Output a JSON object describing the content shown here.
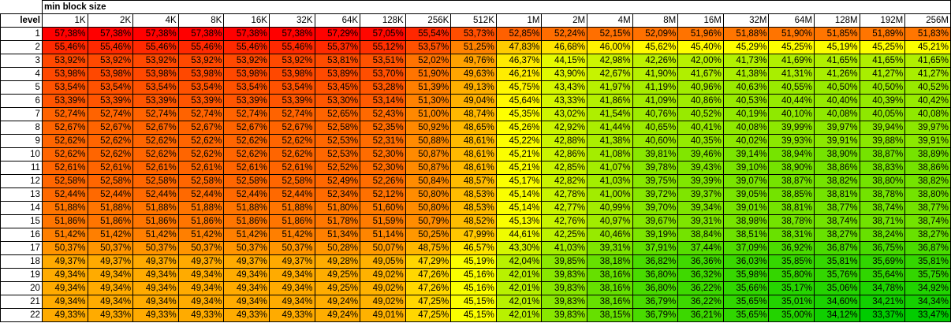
{
  "sheet": {
    "header_title": "min block size",
    "row_header_label": "level",
    "block_sizes": [
      "1K",
      "2K",
      "4K",
      "8K",
      "16K",
      "32K",
      "64K",
      "128K",
      "256K",
      "512K",
      "1M",
      "2M",
      "4M",
      "8M",
      "16M",
      "32M",
      "64M",
      "128M",
      "192M",
      "256M"
    ],
    "rows": [
      {
        "level": "1",
        "values": [
          "57,38%",
          "57,38%",
          "57,38%",
          "57,38%",
          "57,38%",
          "57,38%",
          "57,29%",
          "57,05%",
          "55,54%",
          "53,73%",
          "52,85%",
          "52,24%",
          "52,15%",
          "52,09%",
          "51,96%",
          "51,88%",
          "51,90%",
          "51,85%",
          "51,89%",
          "51,83%"
        ]
      },
      {
        "level": "2",
        "values": [
          "55,46%",
          "55,46%",
          "55,46%",
          "55,46%",
          "55,46%",
          "55,46%",
          "55,37%",
          "55,12%",
          "53,57%",
          "51,25%",
          "47,83%",
          "46,68%",
          "46,00%",
          "45,62%",
          "45,40%",
          "45,29%",
          "45,25%",
          "45,19%",
          "45,25%",
          "45,21%"
        ]
      },
      {
        "level": "3",
        "values": [
          "53,92%",
          "53,92%",
          "53,92%",
          "53,92%",
          "53,92%",
          "53,92%",
          "53,81%",
          "53,51%",
          "52,02%",
          "49,76%",
          "46,37%",
          "44,15%",
          "42,98%",
          "42,26%",
          "42,00%",
          "41,73%",
          "41,69%",
          "41,65%",
          "41,65%",
          "41,65%"
        ]
      },
      {
        "level": "4",
        "values": [
          "53,98%",
          "53,98%",
          "53,98%",
          "53,98%",
          "53,98%",
          "53,98%",
          "53,89%",
          "53,70%",
          "51,90%",
          "49,63%",
          "46,21%",
          "43,90%",
          "42,67%",
          "41,90%",
          "41,67%",
          "41,38%",
          "41,31%",
          "41,26%",
          "41,27%",
          "41,27%"
        ]
      },
      {
        "level": "5",
        "values": [
          "53,54%",
          "53,54%",
          "53,54%",
          "53,54%",
          "53,54%",
          "53,54%",
          "53,45%",
          "53,28%",
          "51,39%",
          "49,13%",
          "45,75%",
          "43,43%",
          "41,97%",
          "41,19%",
          "40,96%",
          "40,63%",
          "40,55%",
          "40,50%",
          "40,50%",
          "40,52%"
        ]
      },
      {
        "level": "6",
        "values": [
          "53,39%",
          "53,39%",
          "53,39%",
          "53,39%",
          "53,39%",
          "53,39%",
          "53,30%",
          "53,14%",
          "51,30%",
          "49,04%",
          "45,64%",
          "43,33%",
          "41,86%",
          "41,09%",
          "40,86%",
          "40,53%",
          "40,44%",
          "40,40%",
          "40,39%",
          "40,42%"
        ]
      },
      {
        "level": "7",
        "values": [
          "52,74%",
          "52,74%",
          "52,74%",
          "52,74%",
          "52,74%",
          "52,74%",
          "52,65%",
          "52,43%",
          "51,00%",
          "48,74%",
          "45,35%",
          "43,02%",
          "41,54%",
          "40,76%",
          "40,52%",
          "40,19%",
          "40,10%",
          "40,08%",
          "40,05%",
          "40,08%"
        ]
      },
      {
        "level": "8",
        "values": [
          "52,67%",
          "52,67%",
          "52,67%",
          "52,67%",
          "52,67%",
          "52,67%",
          "52,58%",
          "52,35%",
          "50,92%",
          "48,65%",
          "45,26%",
          "42,92%",
          "41,44%",
          "40,65%",
          "40,41%",
          "40,08%",
          "39,99%",
          "39,97%",
          "39,94%",
          "39,97%"
        ]
      },
      {
        "level": "9",
        "values": [
          "52,62%",
          "52,62%",
          "52,62%",
          "52,62%",
          "52,62%",
          "52,62%",
          "52,53%",
          "52,31%",
          "50,88%",
          "48,61%",
          "45,22%",
          "42,88%",
          "41,38%",
          "40,60%",
          "40,35%",
          "40,02%",
          "39,93%",
          "39,91%",
          "39,88%",
          "39,91%"
        ]
      },
      {
        "level": "10",
        "values": [
          "52,62%",
          "52,62%",
          "52,62%",
          "52,62%",
          "52,62%",
          "52,62%",
          "52,53%",
          "52,30%",
          "50,87%",
          "48,61%",
          "45,21%",
          "42,86%",
          "41,08%",
          "39,81%",
          "39,46%",
          "39,14%",
          "38,94%",
          "38,90%",
          "38,87%",
          "38,89%"
        ]
      },
      {
        "level": "11",
        "values": [
          "52,61%",
          "52,61%",
          "52,61%",
          "52,61%",
          "52,61%",
          "52,61%",
          "52,52%",
          "52,30%",
          "50,87%",
          "48,61%",
          "45,21%",
          "42,85%",
          "41,07%",
          "39,78%",
          "39,43%",
          "39,10%",
          "38,90%",
          "38,86%",
          "38,83%",
          "38,86%"
        ]
      },
      {
        "level": "12",
        "values": [
          "52,58%",
          "52,58%",
          "52,58%",
          "52,58%",
          "52,58%",
          "52,58%",
          "52,49%",
          "52,26%",
          "50,84%",
          "48,57%",
          "45,17%",
          "42,82%",
          "41,03%",
          "39,75%",
          "39,39%",
          "39,07%",
          "38,87%",
          "38,82%",
          "38,80%",
          "38,82%"
        ]
      },
      {
        "level": "13",
        "values": [
          "52,44%",
          "52,44%",
          "52,44%",
          "52,44%",
          "52,44%",
          "52,44%",
          "52,34%",
          "52,12%",
          "50,80%",
          "48,53%",
          "45,14%",
          "42,78%",
          "41,00%",
          "39,72%",
          "39,37%",
          "39,05%",
          "38,85%",
          "38,81%",
          "38,78%",
          "38,80%"
        ]
      },
      {
        "level": "14",
        "values": [
          "51,88%",
          "51,88%",
          "51,88%",
          "51,88%",
          "51,88%",
          "51,88%",
          "51,80%",
          "51,60%",
          "50,80%",
          "48,53%",
          "45,14%",
          "42,77%",
          "40,99%",
          "39,70%",
          "39,34%",
          "39,01%",
          "38,81%",
          "38,77%",
          "38,74%",
          "38,77%"
        ]
      },
      {
        "level": "15",
        "values": [
          "51,86%",
          "51,86%",
          "51,86%",
          "51,86%",
          "51,86%",
          "51,86%",
          "51,78%",
          "51,59%",
          "50,79%",
          "48,52%",
          "45,13%",
          "42,76%",
          "40,97%",
          "39,67%",
          "39,31%",
          "38,98%",
          "38,78%",
          "38,74%",
          "38,71%",
          "38,74%"
        ]
      },
      {
        "level": "16",
        "values": [
          "51,42%",
          "51,42%",
          "51,42%",
          "51,42%",
          "51,42%",
          "51,42%",
          "51,34%",
          "51,14%",
          "50,25%",
          "47,99%",
          "44,61%",
          "42,25%",
          "40,46%",
          "39,19%",
          "38,84%",
          "38,51%",
          "38,31%",
          "38,27%",
          "38,24%",
          "38,27%"
        ]
      },
      {
        "level": "17",
        "values": [
          "50,37%",
          "50,37%",
          "50,37%",
          "50,37%",
          "50,37%",
          "50,37%",
          "50,28%",
          "50,07%",
          "48,75%",
          "46,57%",
          "43,30%",
          "41,03%",
          "39,31%",
          "37,91%",
          "37,44%",
          "37,09%",
          "36,92%",
          "36,87%",
          "36,75%",
          "36,87%"
        ]
      },
      {
        "level": "18",
        "values": [
          "49,37%",
          "49,37%",
          "49,37%",
          "49,37%",
          "49,37%",
          "49,37%",
          "49,28%",
          "49,05%",
          "47,29%",
          "45,19%",
          "42,04%",
          "39,85%",
          "38,18%",
          "36,82%",
          "36,36%",
          "36,03%",
          "35,85%",
          "35,81%",
          "35,69%",
          "35,81%"
        ]
      },
      {
        "level": "19",
        "values": [
          "49,34%",
          "49,34%",
          "49,34%",
          "49,34%",
          "49,34%",
          "49,34%",
          "49,25%",
          "49,02%",
          "47,26%",
          "45,16%",
          "42,01%",
          "39,83%",
          "38,16%",
          "36,80%",
          "36,32%",
          "35,98%",
          "35,80%",
          "35,76%",
          "35,64%",
          "35,75%"
        ]
      },
      {
        "level": "20",
        "values": [
          "49,34%",
          "49,34%",
          "49,34%",
          "49,34%",
          "49,34%",
          "49,34%",
          "49,25%",
          "49,02%",
          "47,26%",
          "45,16%",
          "42,01%",
          "39,83%",
          "38,16%",
          "36,80%",
          "36,22%",
          "35,66%",
          "35,17%",
          "35,06%",
          "34,78%",
          "34,92%"
        ]
      },
      {
        "level": "21",
        "values": [
          "49,34%",
          "49,34%",
          "49,34%",
          "49,34%",
          "49,34%",
          "49,34%",
          "49,24%",
          "49,02%",
          "47,25%",
          "45,15%",
          "42,01%",
          "39,83%",
          "38,16%",
          "36,79%",
          "36,22%",
          "35,65%",
          "35,01%",
          "34,60%",
          "34,21%",
          "34,34%"
        ]
      },
      {
        "level": "22",
        "values": [
          "49,33%",
          "49,33%",
          "49,33%",
          "49,33%",
          "49,33%",
          "49,33%",
          "49,24%",
          "49,01%",
          "47,25%",
          "45,15%",
          "42,01%",
          "39,83%",
          "38,15%",
          "36,79%",
          "36,21%",
          "35,65%",
          "35,00%",
          "34,12%",
          "33,37%",
          "33,47%"
        ]
      }
    ]
  },
  "color_scale": {
    "high": "#ff0000",
    "mid": "#ffff00",
    "low": "#00cc00"
  }
}
